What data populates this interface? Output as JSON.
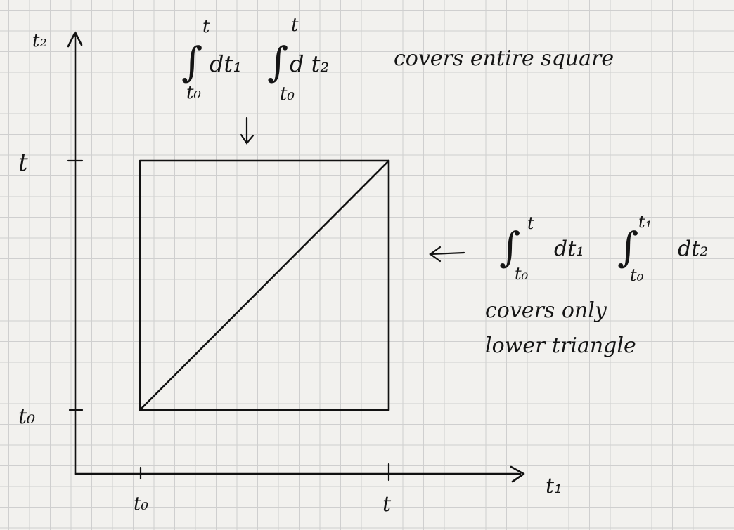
{
  "axes": {
    "x_label": "t₁",
    "y_label": "t₂",
    "x_ticks": [
      "t₀",
      "t"
    ],
    "y_ticks": [
      "t",
      "t₀"
    ]
  },
  "top_annotation": {
    "integral_1": {
      "upper": "t",
      "lower": "t₀",
      "integrand": "dt₁"
    },
    "integral_2": {
      "upper": "t",
      "lower": "t₀",
      "integrand": "d t₂"
    },
    "caption": "covers entire square",
    "arrow": "down-arrow-icon"
  },
  "side_annotation": {
    "integral_1": {
      "upper": "t",
      "lower": "t₀",
      "integrand": "dt₁"
    },
    "integral_2": {
      "upper": "t₁",
      "lower": "t₀",
      "integrand": "dt₂"
    },
    "caption_line1": "covers only",
    "caption_line2": "lower triangle",
    "arrow": "left-arrow-icon"
  }
}
